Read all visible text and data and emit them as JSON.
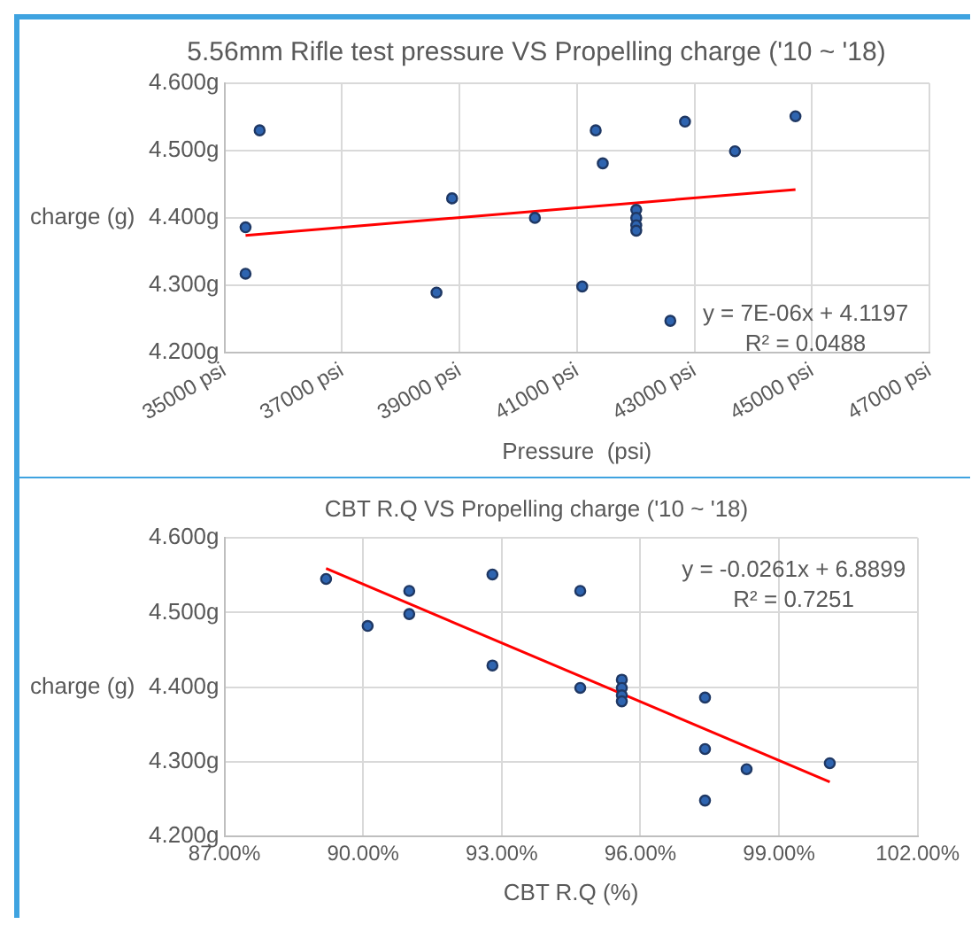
{
  "chart_data": [
    {
      "type": "scatter",
      "title": "5.56mm Rifle test pressure VS Propelling charge ('10 ~ '18)",
      "xlabel": "Pressure  (psi)",
      "ylabel": "charge (g)",
      "annotations": [
        "y = 7E-06x + 4.1197",
        "R² = 0.0488"
      ],
      "series": [
        {
          "marker": "circle",
          "color": "#2e64b0",
          "x": [
            35360,
            35360,
            35600,
            38610,
            38875,
            40285,
            41090,
            41320,
            41440,
            42010,
            42010,
            42010,
            42010,
            42590,
            42840,
            43690,
            44720
          ],
          "values": [
            4.386,
            4.317,
            4.53,
            4.289,
            4.429,
            4.4,
            4.298,
            4.53,
            4.481,
            4.412,
            4.4,
            4.389,
            4.381,
            4.247,
            4.543,
            4.499,
            4.551
          ]
        },
        {
          "type": "line",
          "marker": "none",
          "color": "#ff0000",
          "x": [
            35360,
            44720
          ],
          "values": [
            4.374,
            4.442
          ]
        }
      ],
      "xlim": [
        35000,
        47000
      ],
      "xticks": [
        {
          "value": 35000,
          "label": "35000 psi"
        },
        {
          "value": 37000,
          "label": "37000 psi"
        },
        {
          "value": 39000,
          "label": "39000 psi"
        },
        {
          "value": 41000,
          "label": "41000 psi"
        },
        {
          "value": 43000,
          "label": "43000 psi"
        },
        {
          "value": 45000,
          "label": "45000 psi"
        },
        {
          "value": 47000,
          "label": "47000 psi"
        }
      ],
      "ylim": [
        4.2,
        4.6
      ],
      "yticks": [
        {
          "value": 4.2,
          "label": "4.200g"
        },
        {
          "value": 4.3,
          "label": "4.300g"
        },
        {
          "value": 4.4,
          "label": "4.400g"
        },
        {
          "value": 4.5,
          "label": "4.500g"
        },
        {
          "value": 4.6,
          "label": "4.600g"
        }
      ],
      "grid": true,
      "legend": false
    },
    {
      "type": "scatter",
      "title": "CBT R.Q VS Propelling charge ('10 ~ '18)",
      "xlabel": "CBT R.Q (%)",
      "ylabel": "charge (g)",
      "annotations": [
        "y = -0.0261x + 6.8899",
        "R² = 0.7251"
      ],
      "series": [
        {
          "marker": "circle",
          "color": "#2e64b0",
          "x": [
            89.2,
            90.1,
            91.0,
            91.0,
            92.8,
            92.8,
            94.7,
            94.7,
            95.6,
            95.6,
            95.6,
            95.6,
            97.4,
            97.4,
            97.4,
            98.3,
            100.1
          ],
          "values": [
            4.545,
            4.482,
            4.529,
            4.498,
            4.551,
            4.429,
            4.529,
            4.399,
            4.41,
            4.399,
            4.389,
            4.381,
            4.386,
            4.317,
            4.248,
            4.29,
            4.298
          ]
        },
        {
          "type": "line",
          "marker": "none",
          "color": "#ff0000",
          "x": [
            89.2,
            100.1
          ],
          "values": [
            4.559,
            4.273
          ]
        }
      ],
      "xlim": [
        87,
        102
      ],
      "xticks": [
        {
          "value": 87,
          "label": "87.00%"
        },
        {
          "value": 90,
          "label": "90.00%"
        },
        {
          "value": 93,
          "label": "93.00%"
        },
        {
          "value": 96,
          "label": "96.00%"
        },
        {
          "value": 99,
          "label": "99.00%"
        },
        {
          "value": 102,
          "label": "102.00%"
        }
      ],
      "ylim": [
        4.2,
        4.6
      ],
      "yticks": [
        {
          "value": 4.2,
          "label": "4.200g"
        },
        {
          "value": 4.3,
          "label": "4.300g"
        },
        {
          "value": 4.4,
          "label": "4.400g"
        },
        {
          "value": 4.5,
          "label": "4.500g"
        },
        {
          "value": 4.6,
          "label": "4.600g"
        }
      ],
      "grid": true,
      "legend": false
    }
  ]
}
